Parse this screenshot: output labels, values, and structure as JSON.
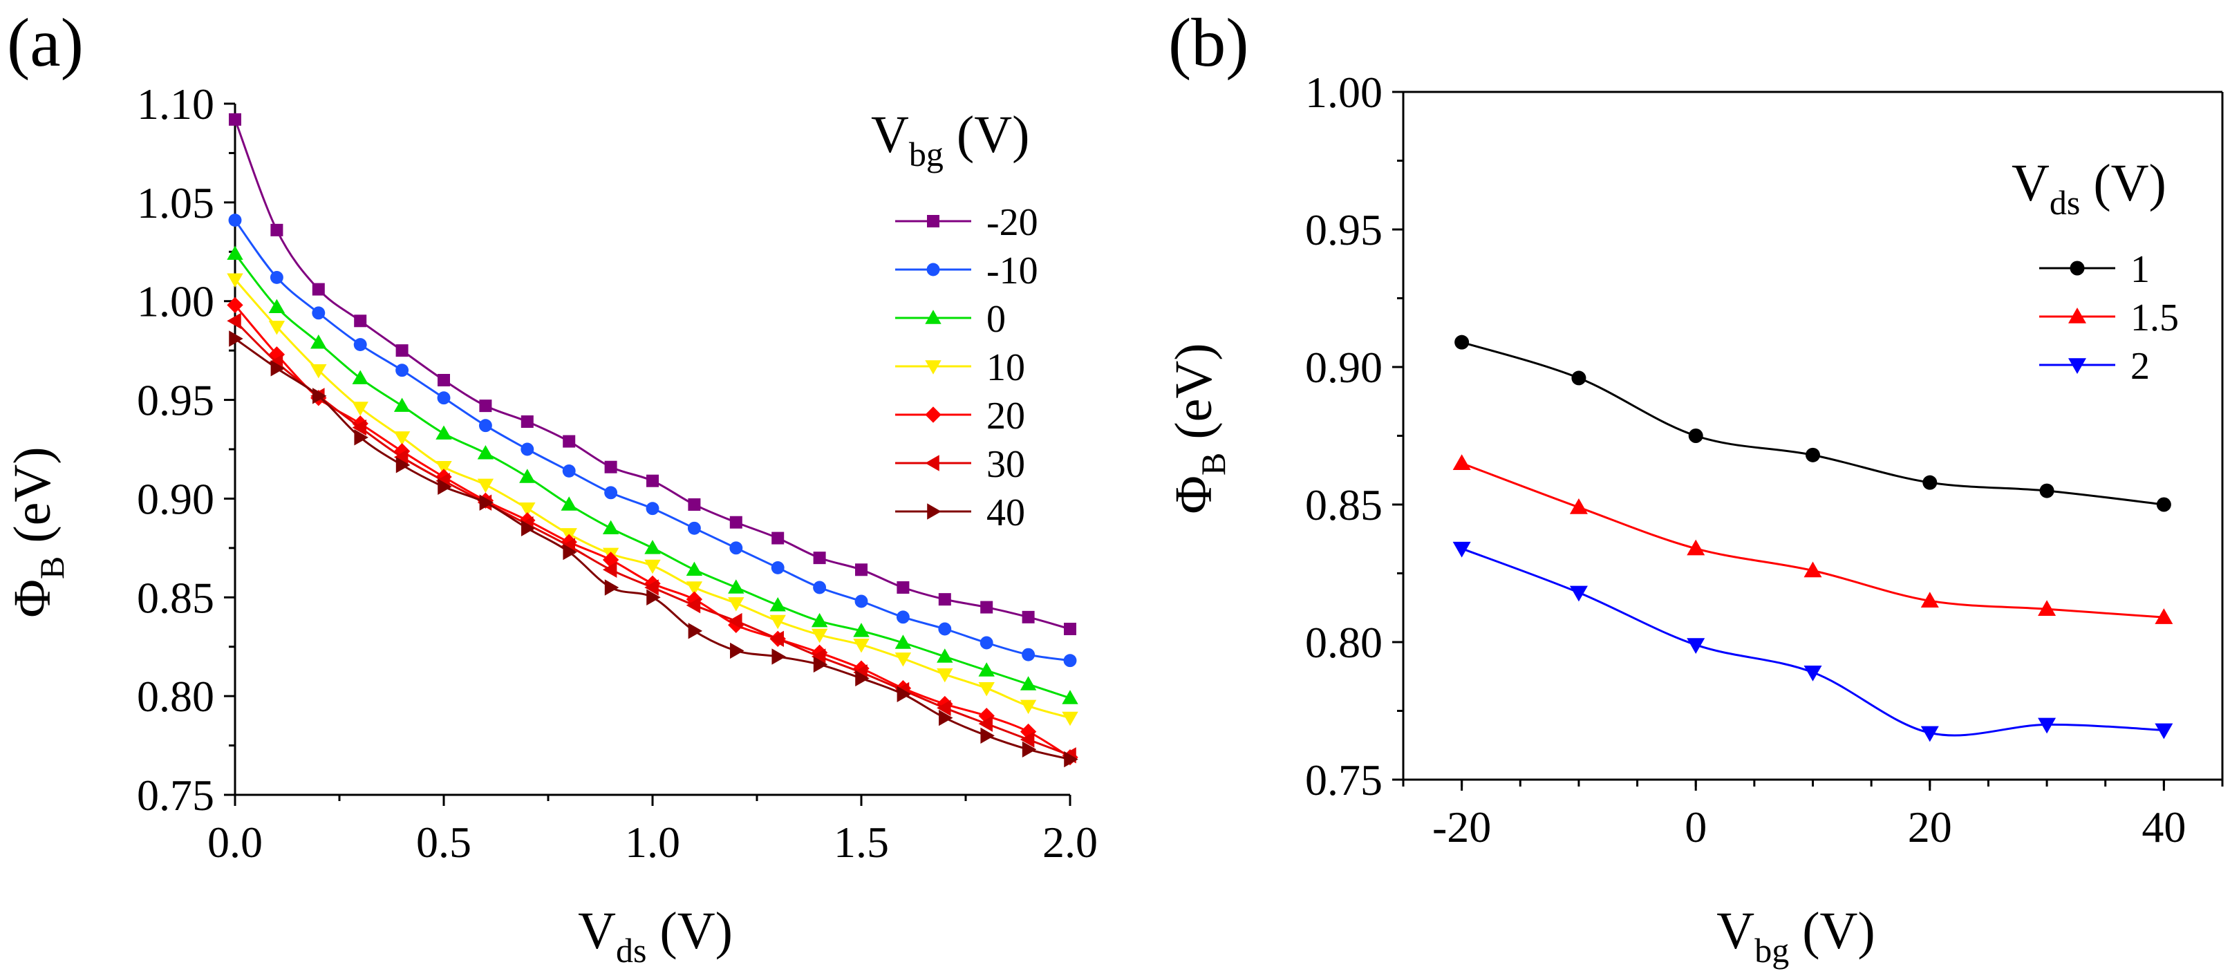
{
  "chart_data": [
    {
      "panel_label": "(a)",
      "type": "line",
      "xlabel": {
        "main": "V",
        "sub": "ds",
        "unit": " (V)"
      },
      "ylabel": {
        "main": "Φ",
        "sub": "B",
        "unit": " (eV)"
      },
      "xlim": [
        0,
        2.0
      ],
      "ylim": [
        0.75,
        1.1
      ],
      "xticks": [
        "0.0",
        "0.5",
        "1.0",
        "1.5",
        "2.0"
      ],
      "yticks": [
        "0.75",
        "0.80",
        "0.85",
        "0.90",
        "0.95",
        "1.00",
        "1.05",
        "1.10"
      ],
      "legend_title": {
        "main": "V",
        "sub": "bg",
        "unit": " (V)"
      },
      "legend_position": "top-right",
      "x": [
        0.0,
        0.1,
        0.2,
        0.3,
        0.4,
        0.5,
        0.6,
        0.7,
        0.8,
        0.9,
        1.0,
        1.1,
        1.2,
        1.3,
        1.4,
        1.5,
        1.6,
        1.7,
        1.8,
        1.9,
        2.0
      ],
      "series": [
        {
          "name": "-20",
          "color": "#800080",
          "marker": "square",
          "values": [
            1.092,
            1.036,
            1.006,
            0.99,
            0.975,
            0.96,
            0.947,
            0.939,
            0.929,
            0.916,
            0.909,
            0.897,
            0.888,
            0.88,
            0.87,
            0.864,
            0.855,
            0.849,
            0.845,
            0.84,
            0.834
          ]
        },
        {
          "name": "-10",
          "color": "#1a53ff",
          "marker": "circle",
          "values": [
            1.041,
            1.012,
            0.994,
            0.978,
            0.965,
            0.951,
            0.937,
            0.925,
            0.914,
            0.903,
            0.895,
            0.885,
            0.875,
            0.865,
            0.855,
            0.848,
            0.84,
            0.834,
            0.827,
            0.821,
            0.818
          ]
        },
        {
          "name": "0",
          "color": "#00e000",
          "marker": "triangle-up",
          "values": [
            1.024,
            0.997,
            0.979,
            0.961,
            0.947,
            0.933,
            0.923,
            0.911,
            0.897,
            0.885,
            0.875,
            0.864,
            0.855,
            0.846,
            0.838,
            0.833,
            0.827,
            0.82,
            0.813,
            0.806,
            0.799
          ]
        },
        {
          "name": "10",
          "color": "#ffee00",
          "marker": "triangle-down",
          "values": [
            1.011,
            0.987,
            0.965,
            0.946,
            0.931,
            0.916,
            0.907,
            0.895,
            0.882,
            0.872,
            0.866,
            0.855,
            0.847,
            0.838,
            0.831,
            0.826,
            0.819,
            0.811,
            0.804,
            0.795,
            0.789
          ]
        },
        {
          "name": "20",
          "color": "#ff0000",
          "marker": "diamond",
          "values": [
            0.998,
            0.973,
            0.951,
            0.938,
            0.924,
            0.911,
            0.899,
            0.889,
            0.878,
            0.869,
            0.857,
            0.849,
            0.836,
            0.829,
            0.822,
            0.814,
            0.804,
            0.796,
            0.79,
            0.782,
            0.769
          ]
        },
        {
          "name": "30",
          "color": "#e00000",
          "marker": "triangle-left",
          "values": [
            0.99,
            0.969,
            0.952,
            0.936,
            0.921,
            0.909,
            0.898,
            0.887,
            0.876,
            0.864,
            0.855,
            0.846,
            0.838,
            0.829,
            0.82,
            0.812,
            0.803,
            0.794,
            0.786,
            0.778,
            0.77
          ]
        },
        {
          "name": "40",
          "color": "#800000",
          "marker": "triangle-right",
          "values": [
            0.981,
            0.966,
            0.952,
            0.931,
            0.917,
            0.906,
            0.898,
            0.885,
            0.873,
            0.855,
            0.85,
            0.833,
            0.823,
            0.82,
            0.816,
            0.809,
            0.801,
            0.789,
            0.78,
            0.773,
            0.768
          ]
        }
      ]
    },
    {
      "panel_label": "(b)",
      "type": "line",
      "xlabel": {
        "main": "V",
        "sub": "bg",
        "unit": " (V)"
      },
      "ylabel": {
        "main": "Φ",
        "sub": "B",
        "unit": " (eV)"
      },
      "xlim": [
        -25,
        45
      ],
      "ylim": [
        0.75,
        1.0
      ],
      "xticks": [
        "-20",
        "0",
        "20",
        "40"
      ],
      "yticks": [
        "0.75",
        "0.80",
        "0.85",
        "0.90",
        "0.95",
        "1.00"
      ],
      "legend_title": {
        "main": "V",
        "sub": "ds",
        "unit": " (V)"
      },
      "legend_position": "top-right",
      "x": [
        -20,
        -10,
        0,
        10,
        20,
        30,
        40
      ],
      "series": [
        {
          "name": "1",
          "color": "#000000",
          "marker": "circle",
          "values": [
            0.909,
            0.896,
            0.875,
            0.868,
            0.858,
            0.855,
            0.85
          ]
        },
        {
          "name": "1.5",
          "color": "#ff0000",
          "marker": "triangle-up",
          "values": [
            0.865,
            0.849,
            0.834,
            0.826,
            0.815,
            0.812,
            0.809
          ]
        },
        {
          "name": "2",
          "color": "#0000ff",
          "marker": "triangle-down",
          "values": [
            0.834,
            0.818,
            0.799,
            0.789,
            0.767,
            0.77,
            0.768
          ]
        }
      ]
    }
  ]
}
